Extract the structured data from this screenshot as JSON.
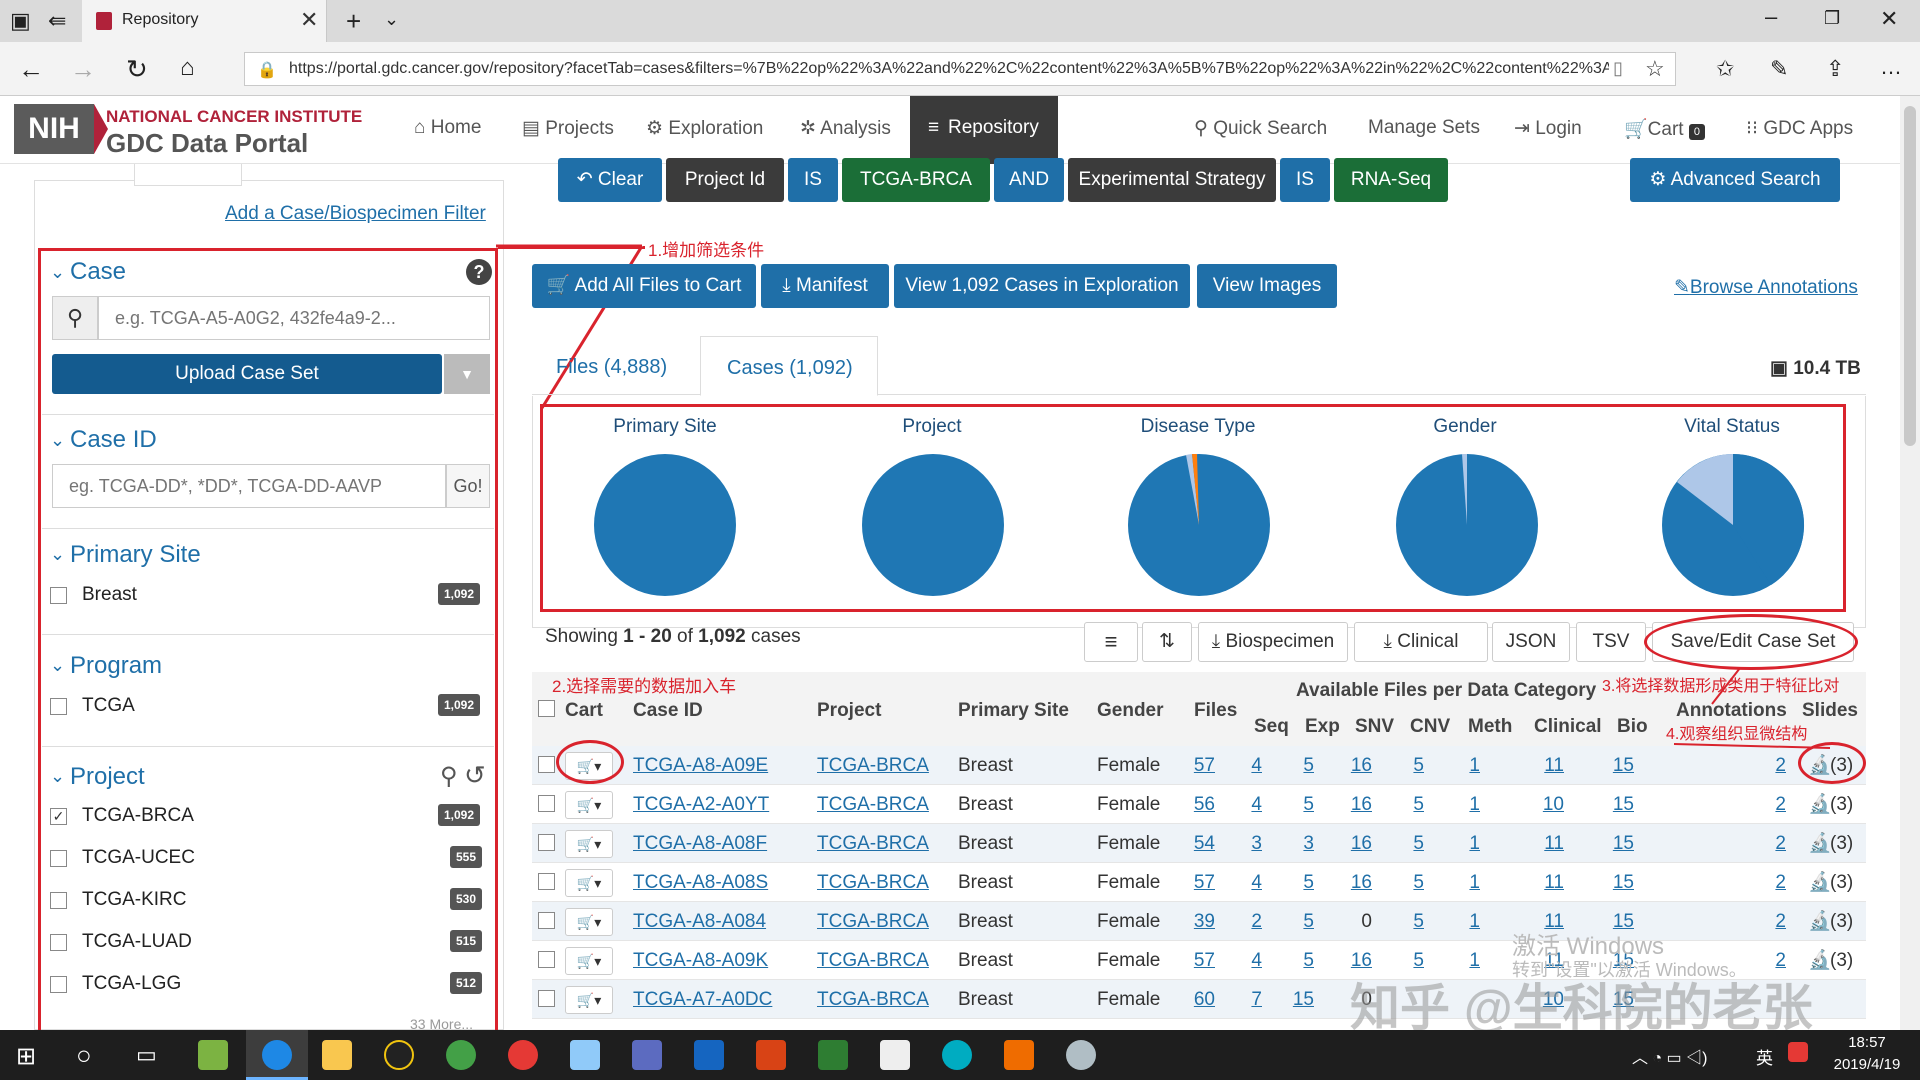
{
  "browser": {
    "tab_title": "Repository",
    "url": "https://portal.gdc.cancer.gov/repository?facetTab=cases&filters=%7B%22op%22%3A%22and%22%2C%22content%22%3A%5B%7B%22op%22%3A%22in%22%2C%22content%22%3A%"
  },
  "header": {
    "logo_nih": "NIH",
    "logo_line1": "NATIONAL CANCER INSTITUTE",
    "logo_line2": "GDC Data Portal",
    "nav": [
      "Home",
      "Projects",
      "Exploration",
      "Analysis",
      "Repository"
    ],
    "right_nav": [
      "Quick Search",
      "Manage Sets",
      "Login",
      "Cart",
      "GDC Apps"
    ],
    "cart_count": "0"
  },
  "filters": {
    "clear": "Clear",
    "chips": [
      "Project Id",
      "IS",
      "TCGA-BRCA",
      "AND",
      "Experimental Strategy",
      "IS",
      "RNA-Seq"
    ],
    "advanced": "Advanced Search"
  },
  "left": {
    "add_filter": "Add a Case/Biospecimen Filter",
    "case_title": "Case",
    "case_placeholder": "e.g. TCGA-A5-A0G2, 432fe4a9-2...",
    "upload": "Upload Case Set",
    "caseid_title": "Case ID",
    "caseid_placeholder": "eg. TCGA-DD*, *DD*, TCGA-DD-AAVP",
    "go": "Go!",
    "primary_site_title": "Primary Site",
    "primary_site": [
      {
        "label": "Breast",
        "count": "1,092"
      }
    ],
    "program_title": "Program",
    "program": [
      {
        "label": "TCGA",
        "count": "1,092"
      }
    ],
    "project_title": "Project",
    "project": [
      {
        "label": "TCGA-BRCA",
        "count": "1,092"
      },
      {
        "label": "TCGA-UCEC",
        "count": "555"
      },
      {
        "label": "TCGA-KIRC",
        "count": "530"
      },
      {
        "label": "TCGA-LUAD",
        "count": "515"
      },
      {
        "label": "TCGA-LGG",
        "count": "512"
      }
    ],
    "more": "33 More..."
  },
  "actions": {
    "add_all": "Add All Files to Cart",
    "manifest": "Manifest",
    "view_cases": "View 1,092 Cases in Exploration",
    "view_images": "View Images",
    "browse_annotations": "Browse Annotations"
  },
  "tabs": {
    "files": "Files (4,888)",
    "cases": "Cases (1,092)",
    "size": "10.4 TB"
  },
  "pies": [
    "Primary Site",
    "Project",
    "Disease Type",
    "Gender",
    "Vital Status"
  ],
  "table": {
    "showing_prefix": "Showing ",
    "showing_range": "1 - 20",
    "showing_of": " of ",
    "showing_total": "1,092",
    "showing_suffix": " cases",
    "buttons": [
      "Biospecimen",
      "Clinical",
      "JSON",
      "TSV",
      "Save/Edit Case Set"
    ],
    "group_header": "Available Files per Data Category",
    "headers": [
      "Cart",
      "Case ID",
      "Project",
      "Primary Site",
      "Gender",
      "Files",
      "Seq",
      "Exp",
      "SNV",
      "CNV",
      "Meth",
      "Clinical",
      "Bio",
      "Annotations",
      "Slides"
    ],
    "rows": [
      [
        "TCGA-A8-A09E",
        "TCGA-BRCA",
        "Breast",
        "Female",
        "57",
        "4",
        "5",
        "16",
        "5",
        "1",
        "11",
        "15",
        "2",
        "(3)"
      ],
      [
        "TCGA-A2-A0YT",
        "TCGA-BRCA",
        "Breast",
        "Female",
        "56",
        "4",
        "5",
        "16",
        "5",
        "1",
        "10",
        "15",
        "2",
        "(3)"
      ],
      [
        "TCGA-A8-A08F",
        "TCGA-BRCA",
        "Breast",
        "Female",
        "54",
        "3",
        "3",
        "16",
        "5",
        "1",
        "11",
        "15",
        "2",
        "(3)"
      ],
      [
        "TCGA-A8-A08S",
        "TCGA-BRCA",
        "Breast",
        "Female",
        "57",
        "4",
        "5",
        "16",
        "5",
        "1",
        "11",
        "15",
        "2",
        "(3)"
      ],
      [
        "TCGA-A8-A084",
        "TCGA-BRCA",
        "Breast",
        "Female",
        "39",
        "2",
        "5",
        "0",
        "5",
        "1",
        "11",
        "15",
        "2",
        "(3)"
      ],
      [
        "TCGA-A8-A09K",
        "TCGA-BRCA",
        "Breast",
        "Female",
        "57",
        "4",
        "5",
        "16",
        "5",
        "1",
        "11",
        "15",
        "2",
        "(3)"
      ],
      [
        "TCGA-A7-A0DC",
        "TCGA-BRCA",
        "Breast",
        "Female",
        "60",
        "7",
        "15",
        "0",
        "",
        "",
        "10",
        "15",
        "",
        ""
      ]
    ]
  },
  "annotations": {
    "a1": "1.增加筛选条件",
    "a2": "2.选择需要的数据加入车",
    "a3": "3.将选择数据形成类用于特征比对",
    "a4": "4.观察组织显微结构"
  },
  "watermark": {
    "windows1": "激活 Windows",
    "windows2": "转到\"设置\"以激活 Windows。",
    "zhihu": "知乎 @生科院的老张"
  },
  "taskbar": {
    "time": "18:57",
    "date": "2019/4/19",
    "ime": "英"
  },
  "colors": {
    "brand_blue": "#1f6fa8",
    "pie_blue": "#1f77b4",
    "pie_light": "#aec7e8",
    "pie_orange": "#ff7f0e",
    "annotation_red": "#d9232d",
    "green_chip": "#1b6e37"
  }
}
